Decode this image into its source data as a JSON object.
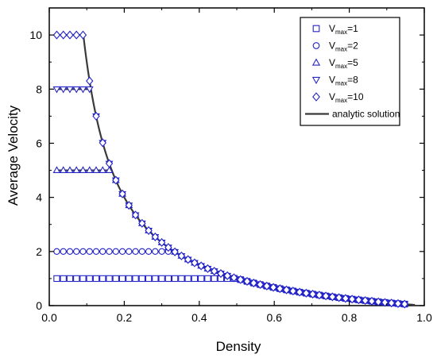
{
  "chart_data": {
    "type": "scatter",
    "title": "",
    "xlabel": "Density",
    "ylabel": "Average Velocity",
    "xlim": [
      0.0,
      1.0
    ],
    "ylim": [
      0,
      11
    ],
    "x_ticks": [
      "0.0",
      "0.2",
      "0.4",
      "0.6",
      "0.8",
      "1.0"
    ],
    "y_ticks": [
      "0",
      "2",
      "4",
      "6",
      "8",
      "10"
    ],
    "legend_position": "top-right",
    "marker_color": "#2323c8",
    "line_color": "#3a3a3a",
    "series": [
      {
        "name": "V",
        "name_sub": "max",
        "name_suffix": "=1",
        "vmax": 1,
        "marker": "square"
      },
      {
        "name": "V",
        "name_sub": "max",
        "name_suffix": "=2",
        "vmax": 2,
        "marker": "circle"
      },
      {
        "name": "V",
        "name_sub": "max",
        "name_suffix": "=5",
        "vmax": 5,
        "marker": "triangle-up"
      },
      {
        "name": "V",
        "name_sub": "max",
        "name_suffix": "=8",
        "vmax": 8,
        "marker": "triangle-down"
      },
      {
        "name": "V",
        "name_sub": "max",
        "name_suffix": "=10",
        "vmax": 10,
        "marker": "diamond"
      }
    ],
    "analytic": {
      "name": "analytic solution"
    }
  }
}
